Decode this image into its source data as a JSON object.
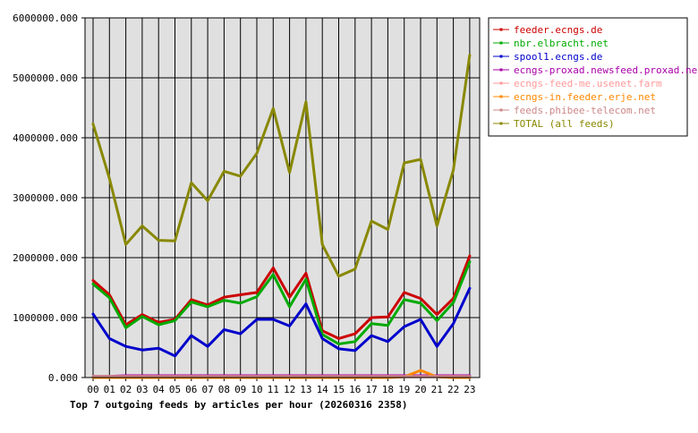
{
  "chart_data": {
    "type": "line",
    "title": "Top 7 outgoing feeds by articles per hour (20260316 2358)",
    "xlabel": "",
    "ylabel": "",
    "ylim": [
      0,
      6000000
    ],
    "y_ticks": [
      "0.000",
      "1000000.000",
      "2000000.000",
      "3000000.000",
      "4000000.000",
      "5000000.000",
      "6000000.000"
    ],
    "y_tick_values": [
      0,
      1000000,
      2000000,
      3000000,
      4000000,
      5000000,
      6000000
    ],
    "categories": [
      "00",
      "01",
      "02",
      "03",
      "04",
      "05",
      "06",
      "07",
      "08",
      "09",
      "10",
      "11",
      "12",
      "13",
      "14",
      "15",
      "16",
      "17",
      "18",
      "19",
      "20",
      "21",
      "22",
      "23"
    ],
    "grid": true,
    "legend_position": "top-right",
    "series": [
      {
        "name": "feeder.ecngs.de",
        "color": "#cc0000",
        "values": [
          1620000,
          1380000,
          880000,
          1050000,
          920000,
          970000,
          1300000,
          1210000,
          1340000,
          1380000,
          1420000,
          1830000,
          1340000,
          1740000,
          780000,
          650000,
          730000,
          1000000,
          1010000,
          1420000,
          1320000,
          1050000,
          1320000,
          2030000
        ]
      },
      {
        "name": "nbr.elbracht.net",
        "color": "#00aa00",
        "values": [
          1560000,
          1330000,
          830000,
          1020000,
          880000,
          950000,
          1260000,
          1180000,
          1290000,
          1240000,
          1350000,
          1720000,
          1180000,
          1640000,
          720000,
          560000,
          600000,
          900000,
          870000,
          1300000,
          1240000,
          950000,
          1250000,
          1930000
        ]
      },
      {
        "name": "spool1.ecngs.de",
        "color": "#0000cc",
        "values": [
          1060000,
          650000,
          520000,
          460000,
          490000,
          360000,
          700000,
          520000,
          800000,
          730000,
          970000,
          970000,
          860000,
          1230000,
          650000,
          480000,
          450000,
          700000,
          600000,
          850000,
          970000,
          520000,
          900000,
          1490000
        ]
      },
      {
        "name": "ecngs-proxad.newsfeed.proxad.net",
        "color": "#aa00aa",
        "values": [
          20000,
          20000,
          30000,
          30000,
          30000,
          30000,
          30000,
          30000,
          30000,
          30000,
          30000,
          30000,
          30000,
          30000,
          30000,
          30000,
          30000,
          30000,
          30000,
          30000,
          30000,
          30000,
          30000,
          30000
        ]
      },
      {
        "name": "ecngs-feed-me.usenet.farm",
        "color": "#ff9999",
        "values": [
          10000,
          10000,
          10000,
          10000,
          10000,
          10000,
          10000,
          10000,
          10000,
          10000,
          10000,
          10000,
          10000,
          10000,
          10000,
          10000,
          10000,
          10000,
          10000,
          10000,
          10000,
          10000,
          10000,
          10000
        ]
      },
      {
        "name": "ecngs-in.feeder.erje.net",
        "color": "#ff8800",
        "values": [
          0,
          0,
          0,
          0,
          0,
          0,
          0,
          0,
          0,
          0,
          0,
          0,
          0,
          0,
          0,
          0,
          0,
          0,
          0,
          10000,
          120000,
          10000,
          0,
          0
        ]
      },
      {
        "name": "feeds.phibee-telecom.net",
        "color": "#cc8888",
        "values": [
          20000,
          20000,
          20000,
          20000,
          20000,
          20000,
          20000,
          20000,
          20000,
          20000,
          20000,
          20000,
          20000,
          20000,
          20000,
          20000,
          20000,
          20000,
          20000,
          20000,
          20000,
          20000,
          20000,
          20000
        ]
      },
      {
        "name": "TOTAL (all feeds)",
        "color": "#888800",
        "values": [
          4230000,
          3320000,
          2220000,
          2530000,
          2290000,
          2280000,
          3250000,
          2950000,
          3440000,
          3360000,
          3740000,
          4490000,
          3420000,
          4600000,
          2220000,
          1690000,
          1810000,
          2610000,
          2470000,
          3580000,
          3640000,
          2530000,
          3460000,
          5380000
        ]
      }
    ]
  }
}
